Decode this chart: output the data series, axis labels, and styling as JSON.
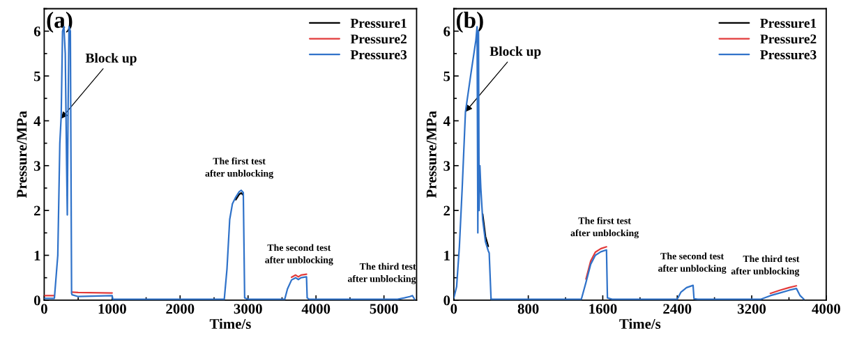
{
  "chart_data": [
    {
      "type": "line",
      "xlabel": "Time/s",
      "ylabel": "Pressure/MPa",
      "xlim": [
        0,
        5480
      ],
      "ylim": [
        0,
        6.5
      ],
      "xticks": [
        0,
        1000,
        2000,
        3000,
        4000,
        5000
      ],
      "yticks": [
        0,
        1,
        2,
        3,
        4,
        5,
        6
      ],
      "legend": "top right",
      "grid": false,
      "annotations": [
        "(a)",
        {
          "text": "Block up",
          "x": 250,
          "y": 4.05
        },
        {
          "text": "The first test\nafter unblocking",
          "x": 2870,
          "y": 2.45
        },
        {
          "text": "The second test\nafter unblocking",
          "x": 3750,
          "y": 0.52
        },
        {
          "text": "The third test\nafter unblocking",
          "x": 5400,
          "y": 0.1
        }
      ],
      "series": [
        {
          "name": "Pressure1",
          "color": "#000000",
          "x": [
            2820,
            2870,
            2900,
            2930
          ],
          "values": [
            2.24,
            2.36,
            2.39,
            2.34
          ]
        },
        {
          "name": "Pressure2",
          "color": "#e23a3a",
          "x": [
            0,
            150,
            160,
            410,
            500,
            1000,
            1005,
            3640,
            3700,
            3740,
            3780,
            3860
          ],
          "values": [
            0.1,
            0.1,
            null,
            0.18,
            0.17,
            0.16,
            null,
            0.51,
            0.56,
            0.52,
            0.56,
            0.58
          ]
        },
        {
          "name": "Pressure3",
          "color": "#2f72c9",
          "x": [
            0,
            150,
            200,
            230,
            250,
            270,
            290,
            310,
            330,
            340,
            350,
            365,
            385,
            403,
            410,
            500,
            1000,
            1010,
            2650,
            2690,
            2730,
            2770,
            2820,
            2870,
            2900,
            2930,
            2950,
            3000,
            3540,
            3580,
            3640,
            3700,
            3740,
            3780,
            3860,
            3870,
            3900,
            5200,
            5300,
            5380,
            5420,
            5450
          ],
          "values": [
            0.04,
            0.04,
            1.0,
            3.5,
            4.1,
            6.0,
            6.1,
            5.5,
            3.0,
            1.9,
            4.0,
            6.1,
            6.0,
            0.15,
            0.12,
            0.08,
            0.1,
            0.02,
            0.02,
            0.7,
            1.8,
            2.15,
            2.3,
            2.42,
            2.45,
            2.4,
            0.05,
            0.02,
            0.02,
            0.25,
            0.45,
            0.5,
            0.46,
            0.5,
            0.52,
            0.05,
            0.02,
            0.02,
            0.05,
            0.08,
            0.1,
            0.02
          ]
        }
      ]
    },
    {
      "type": "line",
      "xlabel": "Time/s",
      "ylabel": "Pressure/MPa",
      "xlim": [
        0,
        4000
      ],
      "ylim": [
        0,
        6.5
      ],
      "xticks": [
        0,
        800,
        1600,
        2400,
        3200,
        4000
      ],
      "yticks": [
        0,
        1,
        2,
        3,
        4,
        5,
        6
      ],
      "legend": "top right",
      "grid": false,
      "annotations": [
        "(b)",
        {
          "text": "Block up",
          "x": 125,
          "y": 4.2
        },
        {
          "text": "The first test\nafter unblocking",
          "x": 1620,
          "y": 1.12
        },
        {
          "text": "The second test\nafter unblocking",
          "x": 2560,
          "y": 0.33
        },
        {
          "text": "The third test\nafter unblocking",
          "x": 3660,
          "y": 0.27
        }
      ],
      "series": [
        {
          "name": "Pressure1",
          "color": "#000000",
          "x": [
            310,
            340,
            370
          ],
          "values": [
            1.92,
            1.42,
            1.2
          ]
        },
        {
          "name": "Pressure2",
          "color": "#e23a3a",
          "x": [
            1420,
            1470,
            1520,
            1580,
            1640,
            1645,
            3400,
            3500,
            3600,
            3680
          ],
          "values": [
            0.47,
            0.87,
            1.07,
            1.15,
            1.19,
            null,
            0.15,
            0.22,
            0.28,
            0.32
          ]
        },
        {
          "name": "Pressure3",
          "color": "#2f72c9",
          "x": [
            0,
            30,
            60,
            90,
            125,
            180,
            237,
            250,
            258,
            265,
            272,
            280,
            290,
            310,
            340,
            370,
            380,
            400,
            1370,
            1420,
            1470,
            1520,
            1580,
            1640,
            1650,
            1700,
            2400,
            2440,
            2500,
            2570,
            2580,
            2620,
            3300,
            3400,
            3500,
            3600,
            3680,
            3720,
            3760
          ],
          "values": [
            0.05,
            0.3,
            1.2,
            2.5,
            4.2,
            5.0,
            5.8,
            6.1,
            1.5,
            6.0,
            2.0,
            3.0,
            2.5,
            1.8,
            1.3,
            1.1,
            1.05,
            0.02,
            0.02,
            0.4,
            0.8,
            1.0,
            1.08,
            1.12,
            0.05,
            0.02,
            0.02,
            0.18,
            0.28,
            0.33,
            0.03,
            0.02,
            0.02,
            0.1,
            0.16,
            0.22,
            0.26,
            0.1,
            0.02
          ]
        }
      ]
    }
  ]
}
